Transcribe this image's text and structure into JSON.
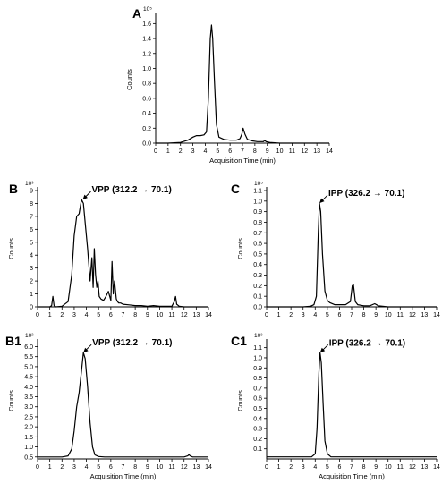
{
  "chart_data": [
    {
      "type": "line",
      "panel_label": "A",
      "xlabel": "Acquisition Time (min)",
      "ylabel": "Counts",
      "y_exponent": "10⁵",
      "xlim": [
        0,
        14
      ],
      "ylim": [
        0,
        1.7
      ],
      "x_ticks": [
        "0",
        "1",
        "2",
        "3",
        "4",
        "5",
        "6",
        "7",
        "8",
        "9",
        "10",
        "11",
        "12",
        "13",
        "14"
      ],
      "y_ticks": [
        "0.0",
        "0.2",
        "0.4",
        "0.6",
        "0.8",
        "1.0",
        "1.2",
        "1.4",
        "1.6"
      ],
      "annotation": "",
      "series": [
        {
          "x": [
            0,
            1.0,
            2.0,
            2.6,
            3.0,
            3.3,
            3.6,
            3.9,
            4.1,
            4.25,
            4.4,
            4.5,
            4.6,
            4.75,
            4.9,
            5.1,
            5.5,
            6.0,
            6.5,
            6.8,
            6.95,
            7.05,
            7.2,
            7.4,
            7.8,
            8.2,
            8.7,
            8.8,
            8.9,
            9.2,
            10,
            11,
            12,
            13,
            14
          ],
          "y": [
            0,
            0,
            0.01,
            0.04,
            0.08,
            0.1,
            0.1,
            0.11,
            0.15,
            0.6,
            1.4,
            1.58,
            1.4,
            0.8,
            0.25,
            0.08,
            0.05,
            0.04,
            0.04,
            0.06,
            0.12,
            0.2,
            0.12,
            0.05,
            0.03,
            0.02,
            0.02,
            0.04,
            0.02,
            0.01,
            0,
            0,
            0,
            0,
            0
          ]
        }
      ]
    },
    {
      "type": "line",
      "panel_label": "B",
      "xlabel": "",
      "ylabel": "Counts",
      "y_exponent": "10³",
      "xlim": [
        0,
        14
      ],
      "ylim": [
        0,
        9
      ],
      "x_ticks": [
        "0",
        "1",
        "2",
        "3",
        "4",
        "5",
        "6",
        "7",
        "8",
        "9",
        "10",
        "11",
        "12",
        "13",
        "14"
      ],
      "y_ticks": [
        "0",
        "1",
        "2",
        "3",
        "4",
        "5",
        "6",
        "7",
        "8",
        "9"
      ],
      "annotation": "VPP (312.2 → 70.1)",
      "annotation_x": 3.7,
      "annotation_y": 8.3,
      "series": [
        {
          "x": [
            0,
            1.0,
            1.15,
            1.25,
            1.35,
            1.5,
            2.0,
            2.5,
            2.8,
            3.0,
            3.2,
            3.4,
            3.6,
            3.75,
            3.9,
            4.1,
            4.3,
            4.45,
            4.55,
            4.65,
            4.75,
            4.85,
            4.95,
            5.05,
            5.2,
            5.4,
            5.6,
            5.8,
            6.0,
            6.1,
            6.2,
            6.3,
            6.45,
            6.55,
            6.65,
            6.8,
            7.0,
            7.5,
            8.0,
            8.5,
            9.0,
            9.5,
            10,
            11,
            11.2,
            11.3,
            11.4,
            11.6,
            12,
            13,
            14
          ],
          "y": [
            0,
            0,
            0.1,
            0.8,
            0.1,
            0,
            0.05,
            0.4,
            2.5,
            5.5,
            7.0,
            7.2,
            8.3,
            8.0,
            6.5,
            4.5,
            2.0,
            3.8,
            1.5,
            4.5,
            2.5,
            1.5,
            2.0,
            0.8,
            0.6,
            0.5,
            0.8,
            1.2,
            0.5,
            3.5,
            1.0,
            2.0,
            0.6,
            0.4,
            0.3,
            0.3,
            0.2,
            0.15,
            0.1,
            0.1,
            0.05,
            0.1,
            0.05,
            0.05,
            0.4,
            0.8,
            0.2,
            0.05,
            0,
            0,
            0
          ]
        }
      ]
    },
    {
      "type": "line",
      "panel_label": "C",
      "xlabel": "",
      "ylabel": "Counts",
      "y_exponent": "10⁵",
      "xlim": [
        0,
        14
      ],
      "ylim": [
        0,
        1.1
      ],
      "x_ticks": [
        "0",
        "1",
        "2",
        "3",
        "4",
        "5",
        "6",
        "7",
        "8",
        "9",
        "10",
        "11",
        "12",
        "13",
        "14"
      ],
      "y_ticks": [
        "0.0",
        "0.1",
        "0.2",
        "0.3",
        "0.4",
        "0.5",
        "0.6",
        "0.7",
        "0.8",
        "0.9",
        "1.0",
        "1.1"
      ],
      "annotation": "IPP (326.2 → 70.1)",
      "annotation_x": 4.35,
      "annotation_y": 0.98,
      "series": [
        {
          "x": [
            0,
            3.0,
            3.6,
            3.9,
            4.1,
            4.25,
            4.35,
            4.45,
            4.6,
            4.8,
            5.0,
            5.2,
            5.6,
            6.0,
            6.5,
            6.9,
            7.05,
            7.15,
            7.3,
            7.5,
            8.0,
            8.5,
            8.9,
            9.2,
            10,
            11,
            12,
            13,
            14
          ],
          "y": [
            0,
            0,
            0.005,
            0.02,
            0.1,
            0.7,
            0.98,
            0.9,
            0.5,
            0.15,
            0.06,
            0.04,
            0.02,
            0.02,
            0.02,
            0.05,
            0.2,
            0.21,
            0.05,
            0.02,
            0.01,
            0.01,
            0.03,
            0.01,
            0,
            0,
            0,
            0,
            0
          ]
        }
      ]
    },
    {
      "type": "line",
      "panel_label": "B1",
      "xlabel": "Acquisition Time (min)",
      "ylabel": "Counts",
      "y_exponent": "10²",
      "xlim": [
        0,
        14
      ],
      "ylim": [
        0.4,
        6.2
      ],
      "x_ticks": [
        "0",
        "1",
        "2",
        "3",
        "4",
        "5",
        "6",
        "7",
        "8",
        "9",
        "10",
        "11",
        "12",
        "13",
        "14"
      ],
      "y_ticks": [
        "0.5",
        "1.0",
        "1.5",
        "2.0",
        "2.5",
        "3.0",
        "3.5",
        "4.0",
        "4.5",
        "5.0",
        "5.5",
        "6.0"
      ],
      "annotation": "VPP (312.2 → 70.1)",
      "annotation_x": 3.75,
      "annotation_y": 5.7,
      "series": [
        {
          "x": [
            0,
            1.0,
            2.0,
            2.5,
            2.8,
            3.0,
            3.2,
            3.4,
            3.6,
            3.75,
            3.9,
            4.1,
            4.3,
            4.5,
            4.7,
            5.0,
            5.5,
            6.0,
            7.0,
            8.0,
            9.0,
            10,
            11,
            12,
            12.3,
            12.4,
            12.5,
            12.7,
            13,
            14
          ],
          "y": [
            0.5,
            0.5,
            0.5,
            0.55,
            0.9,
            1.8,
            3.0,
            3.7,
            4.8,
            5.7,
            5.4,
            4.0,
            2.2,
            1.0,
            0.6,
            0.52,
            0.5,
            0.5,
            0.5,
            0.5,
            0.5,
            0.5,
            0.5,
            0.5,
            0.55,
            0.62,
            0.55,
            0.5,
            0.5,
            0.5
          ]
        }
      ]
    },
    {
      "type": "line",
      "panel_label": "C1",
      "xlabel": "Acquisition Time (min)",
      "ylabel": "Counts",
      "y_exponent": "10³",
      "xlim": [
        0,
        14
      ],
      "ylim": [
        0,
        1.15
      ],
      "x_ticks": [
        "0",
        "1",
        "2",
        "3",
        "4",
        "5",
        "6",
        "7",
        "8",
        "9",
        "10",
        "11",
        "12",
        "13",
        "14"
      ],
      "y_ticks": [
        "0.1",
        "0.2",
        "0.3",
        "0.4",
        "0.5",
        "0.6",
        "0.7",
        "0.8",
        "0.9",
        "1.0",
        "1.1"
      ],
      "annotation": "IPP (326.2 → 70.1)",
      "annotation_x": 4.4,
      "annotation_y": 1.05,
      "series": [
        {
          "x": [
            0,
            3.0,
            3.7,
            4.0,
            4.15,
            4.3,
            4.4,
            4.5,
            4.65,
            4.8,
            5.0,
            5.3,
            5.6,
            6.0,
            7.0,
            8.0,
            9.0,
            10,
            11,
            12,
            13,
            14
          ],
          "y": [
            0.02,
            0.02,
            0.02,
            0.05,
            0.3,
            0.85,
            1.05,
            0.95,
            0.55,
            0.18,
            0.05,
            0.02,
            0.02,
            0.02,
            0.02,
            0.02,
            0.02,
            0.02,
            0.02,
            0.02,
            0.02,
            0.02
          ]
        }
      ]
    }
  ]
}
